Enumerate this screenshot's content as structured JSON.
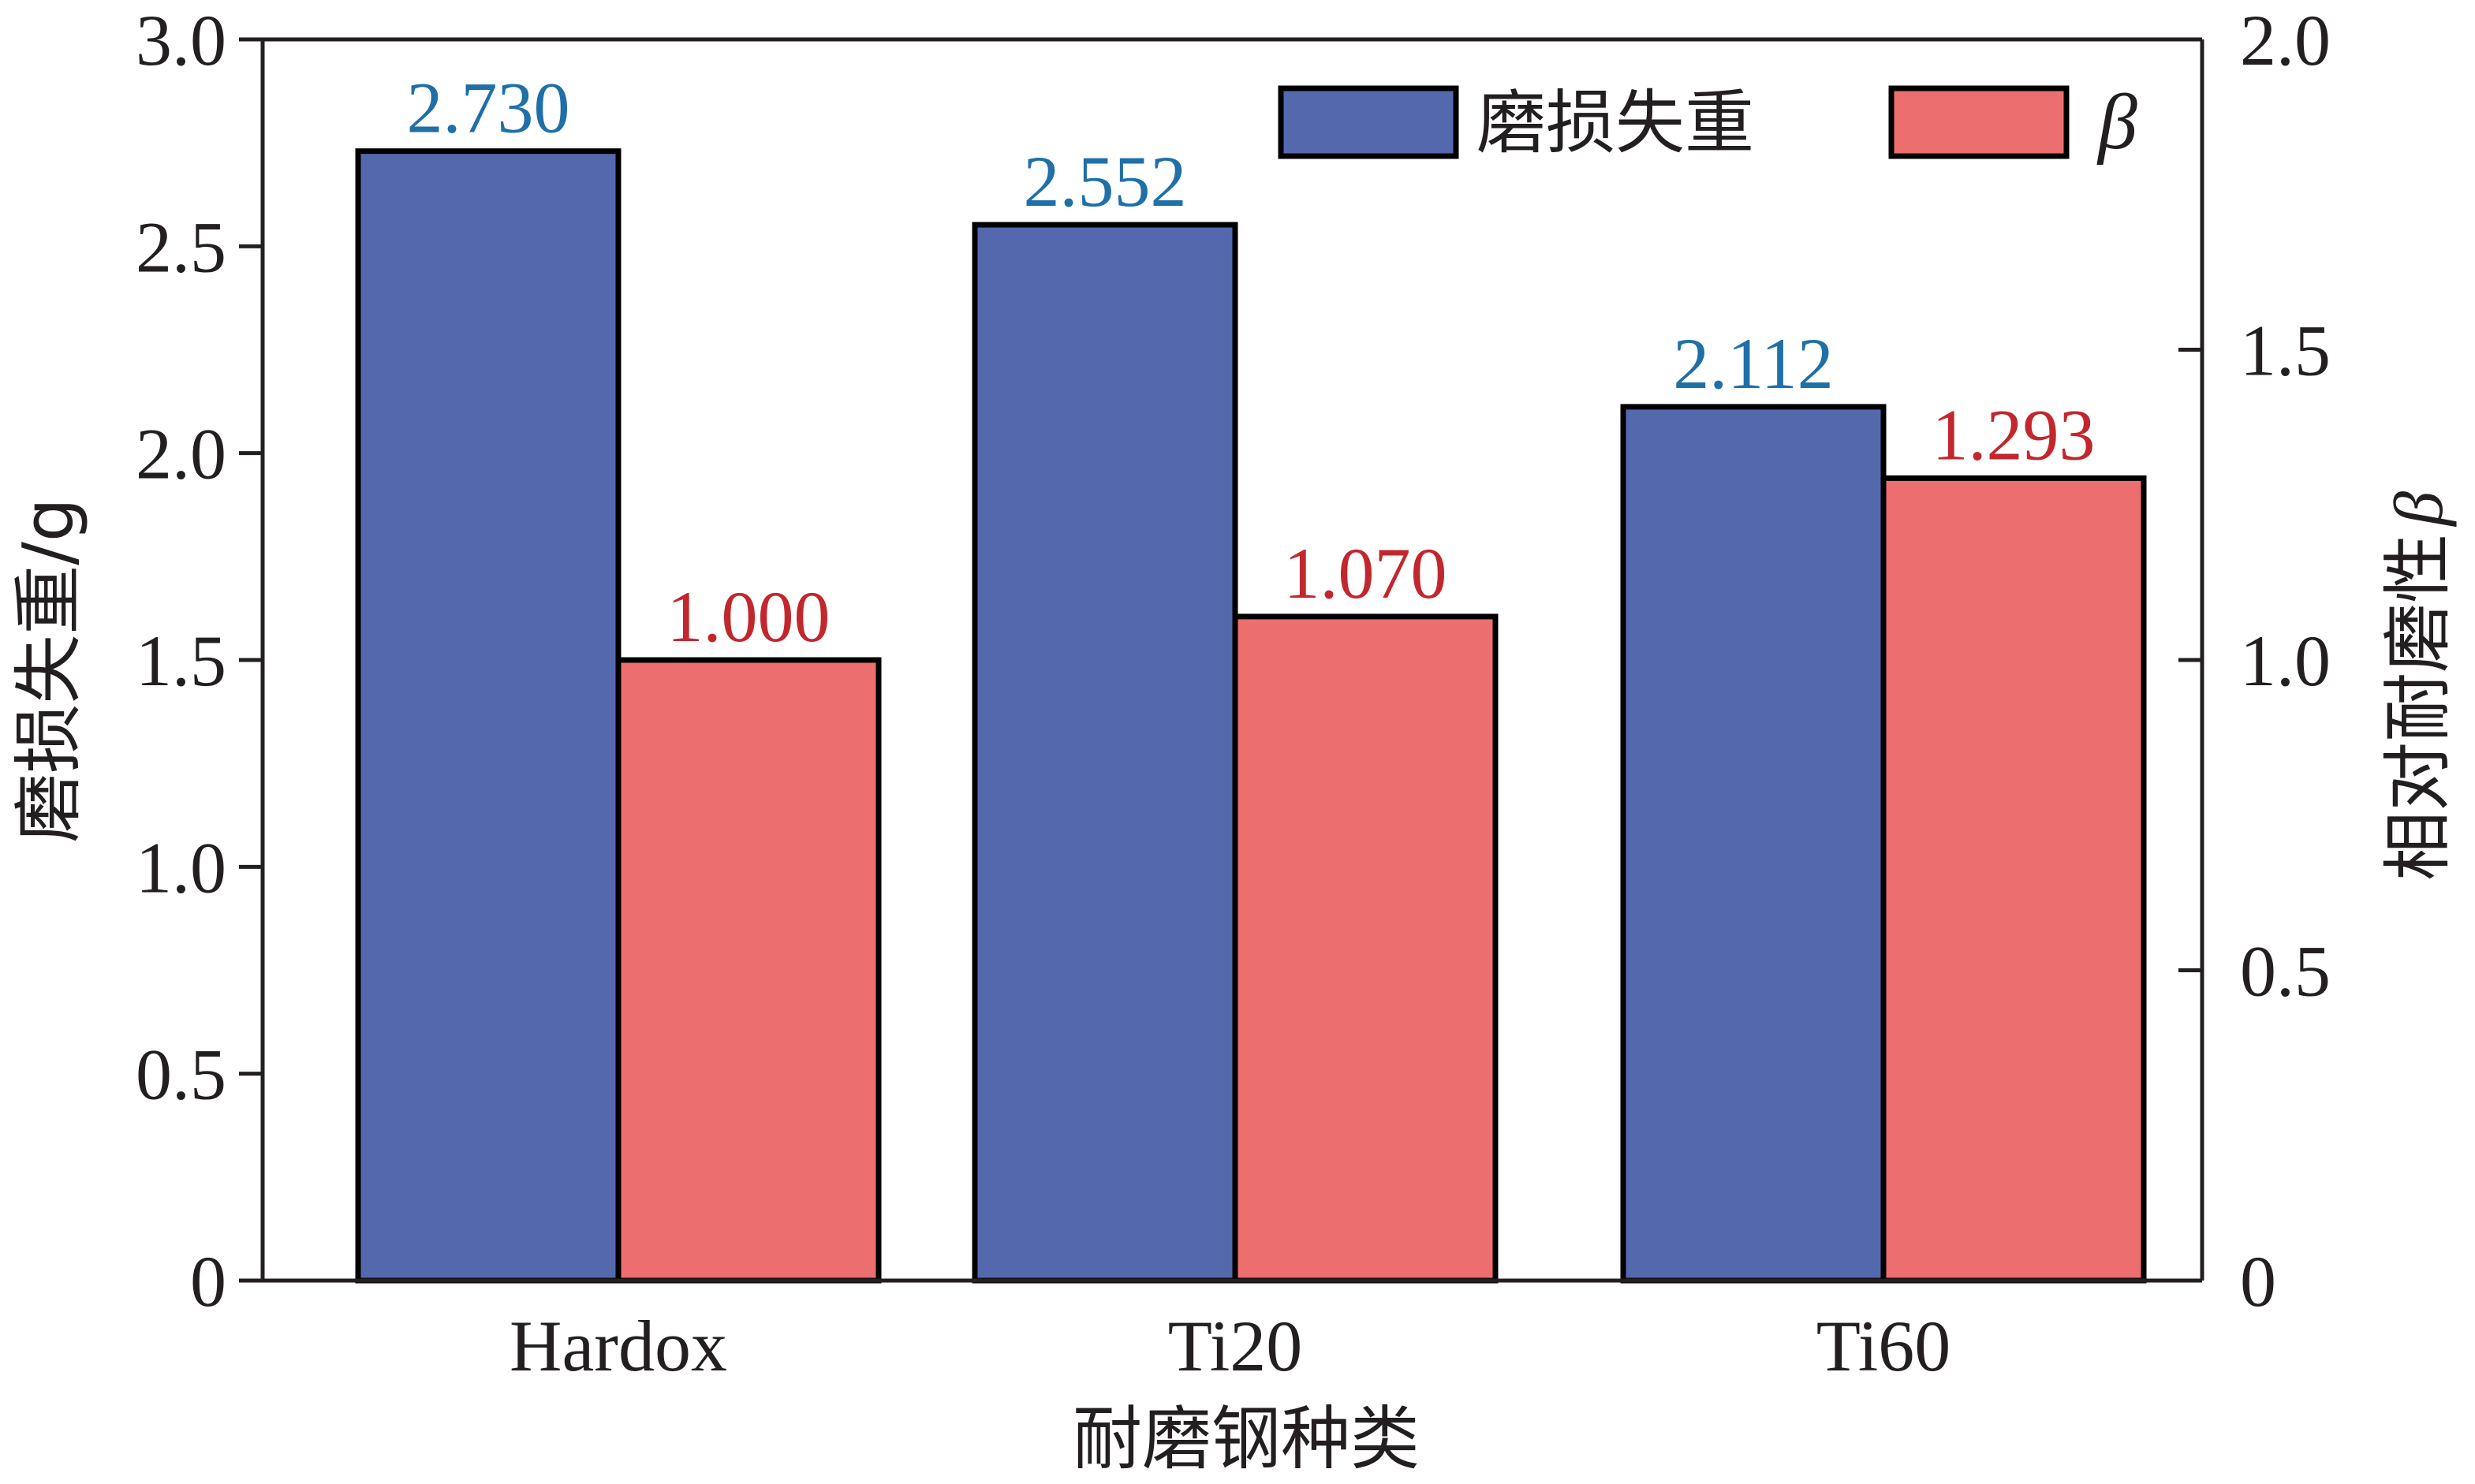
{
  "chart_data": {
    "type": "bar",
    "categories": [
      "Hardox",
      "Ti20",
      "Ti60"
    ],
    "xlabel": "耐磨钢种类",
    "ylabel": "磨损失重/g",
    "ylabel_right": "相对耐磨性",
    "ylabel_right_symbol": "β",
    "ylim": [
      0,
      3.0
    ],
    "ylim_right": [
      0,
      2.0
    ],
    "yticks": [
      "0",
      "0.5",
      "1.0",
      "1.5",
      "2.0",
      "2.5",
      "3.0"
    ],
    "yticks_right": [
      "0",
      "0.5",
      "1.0",
      "1.5",
      "2.0"
    ],
    "legend_position": "top-right",
    "series": [
      {
        "name": "磨损失重",
        "axis": "left",
        "values": [
          2.73,
          2.552,
          2.112
        ],
        "labels": [
          "2.730",
          "2.552",
          "2.112"
        ],
        "color": "#5468ae",
        "label_color": "#1f6fa8"
      },
      {
        "name": "β",
        "axis": "right",
        "values": [
          1.0,
          1.07,
          1.293
        ],
        "labels": [
          "1.000",
          "1.070",
          "1.293"
        ],
        "color": "#ec6e6e",
        "label_color": "#c1272d"
      }
    ]
  }
}
